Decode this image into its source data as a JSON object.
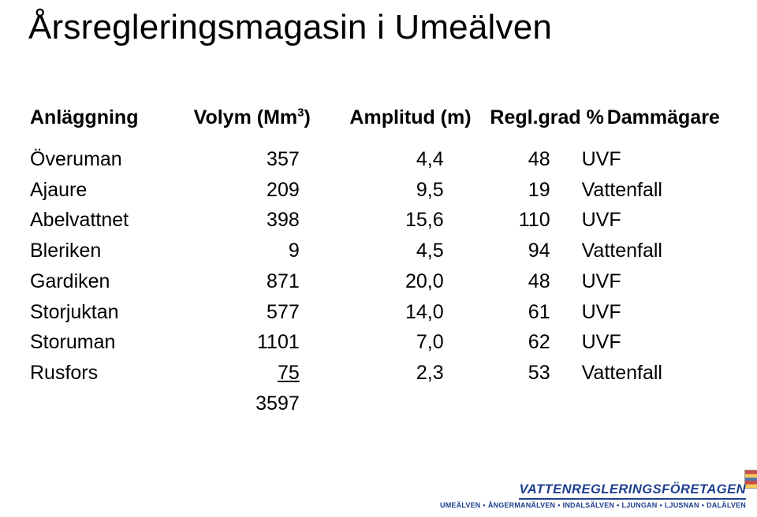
{
  "title": "Årsregleringsmagasin i Umeälven",
  "columns": {
    "c0": "Anläggning",
    "c1": "Volym (Mm",
    "c1_sup": "3",
    "c1_tail": ")",
    "c2": "Amplitud (m)",
    "c3": "Regl.grad %",
    "c4": "Dammägare"
  },
  "rows": [
    {
      "name": "Överuman",
      "vol": "357",
      "amp": "4,4",
      "reg": "48",
      "owner": "UVF"
    },
    {
      "name": "Ajaure",
      "vol": "209",
      "amp": "9,5",
      "reg": "19",
      "owner": "Vattenfall"
    },
    {
      "name": "Abelvattnet",
      "vol": "398",
      "amp": "15,6",
      "reg": "110",
      "owner": "UVF"
    },
    {
      "name": "Bleriken",
      "vol": "9",
      "amp": "4,5",
      "reg": "94",
      "owner": "Vattenfall"
    },
    {
      "name": "Gardiken",
      "vol": "871",
      "amp": "20,0",
      "reg": "48",
      "owner": "UVF"
    },
    {
      "name": "Storjuktan",
      "vol": "577",
      "amp": "14,0",
      "reg": "61",
      "owner": "UVF"
    },
    {
      "name": "Storuman",
      "vol": "1101",
      "amp": "7,0",
      "reg": "62",
      "owner": "UVF"
    },
    {
      "name": "Rusfors",
      "vol": "75",
      "amp": "2,3",
      "reg": "53",
      "owner": "Vattenfall",
      "underline": true
    }
  ],
  "total": "3597",
  "footer": {
    "company": "VATTENREGLERINGSFÖRETAGEN",
    "rivers": [
      "UMEÄLVEN",
      "ÅNGERMANÄLVEN",
      "INDALSÄLVEN",
      "LJUNGAN",
      "LJUSNAN",
      "DALÄLVEN"
    ]
  },
  "colors": {
    "text": "#000000",
    "footer_blue": "#1f3f8f",
    "background": "#ffffff"
  }
}
